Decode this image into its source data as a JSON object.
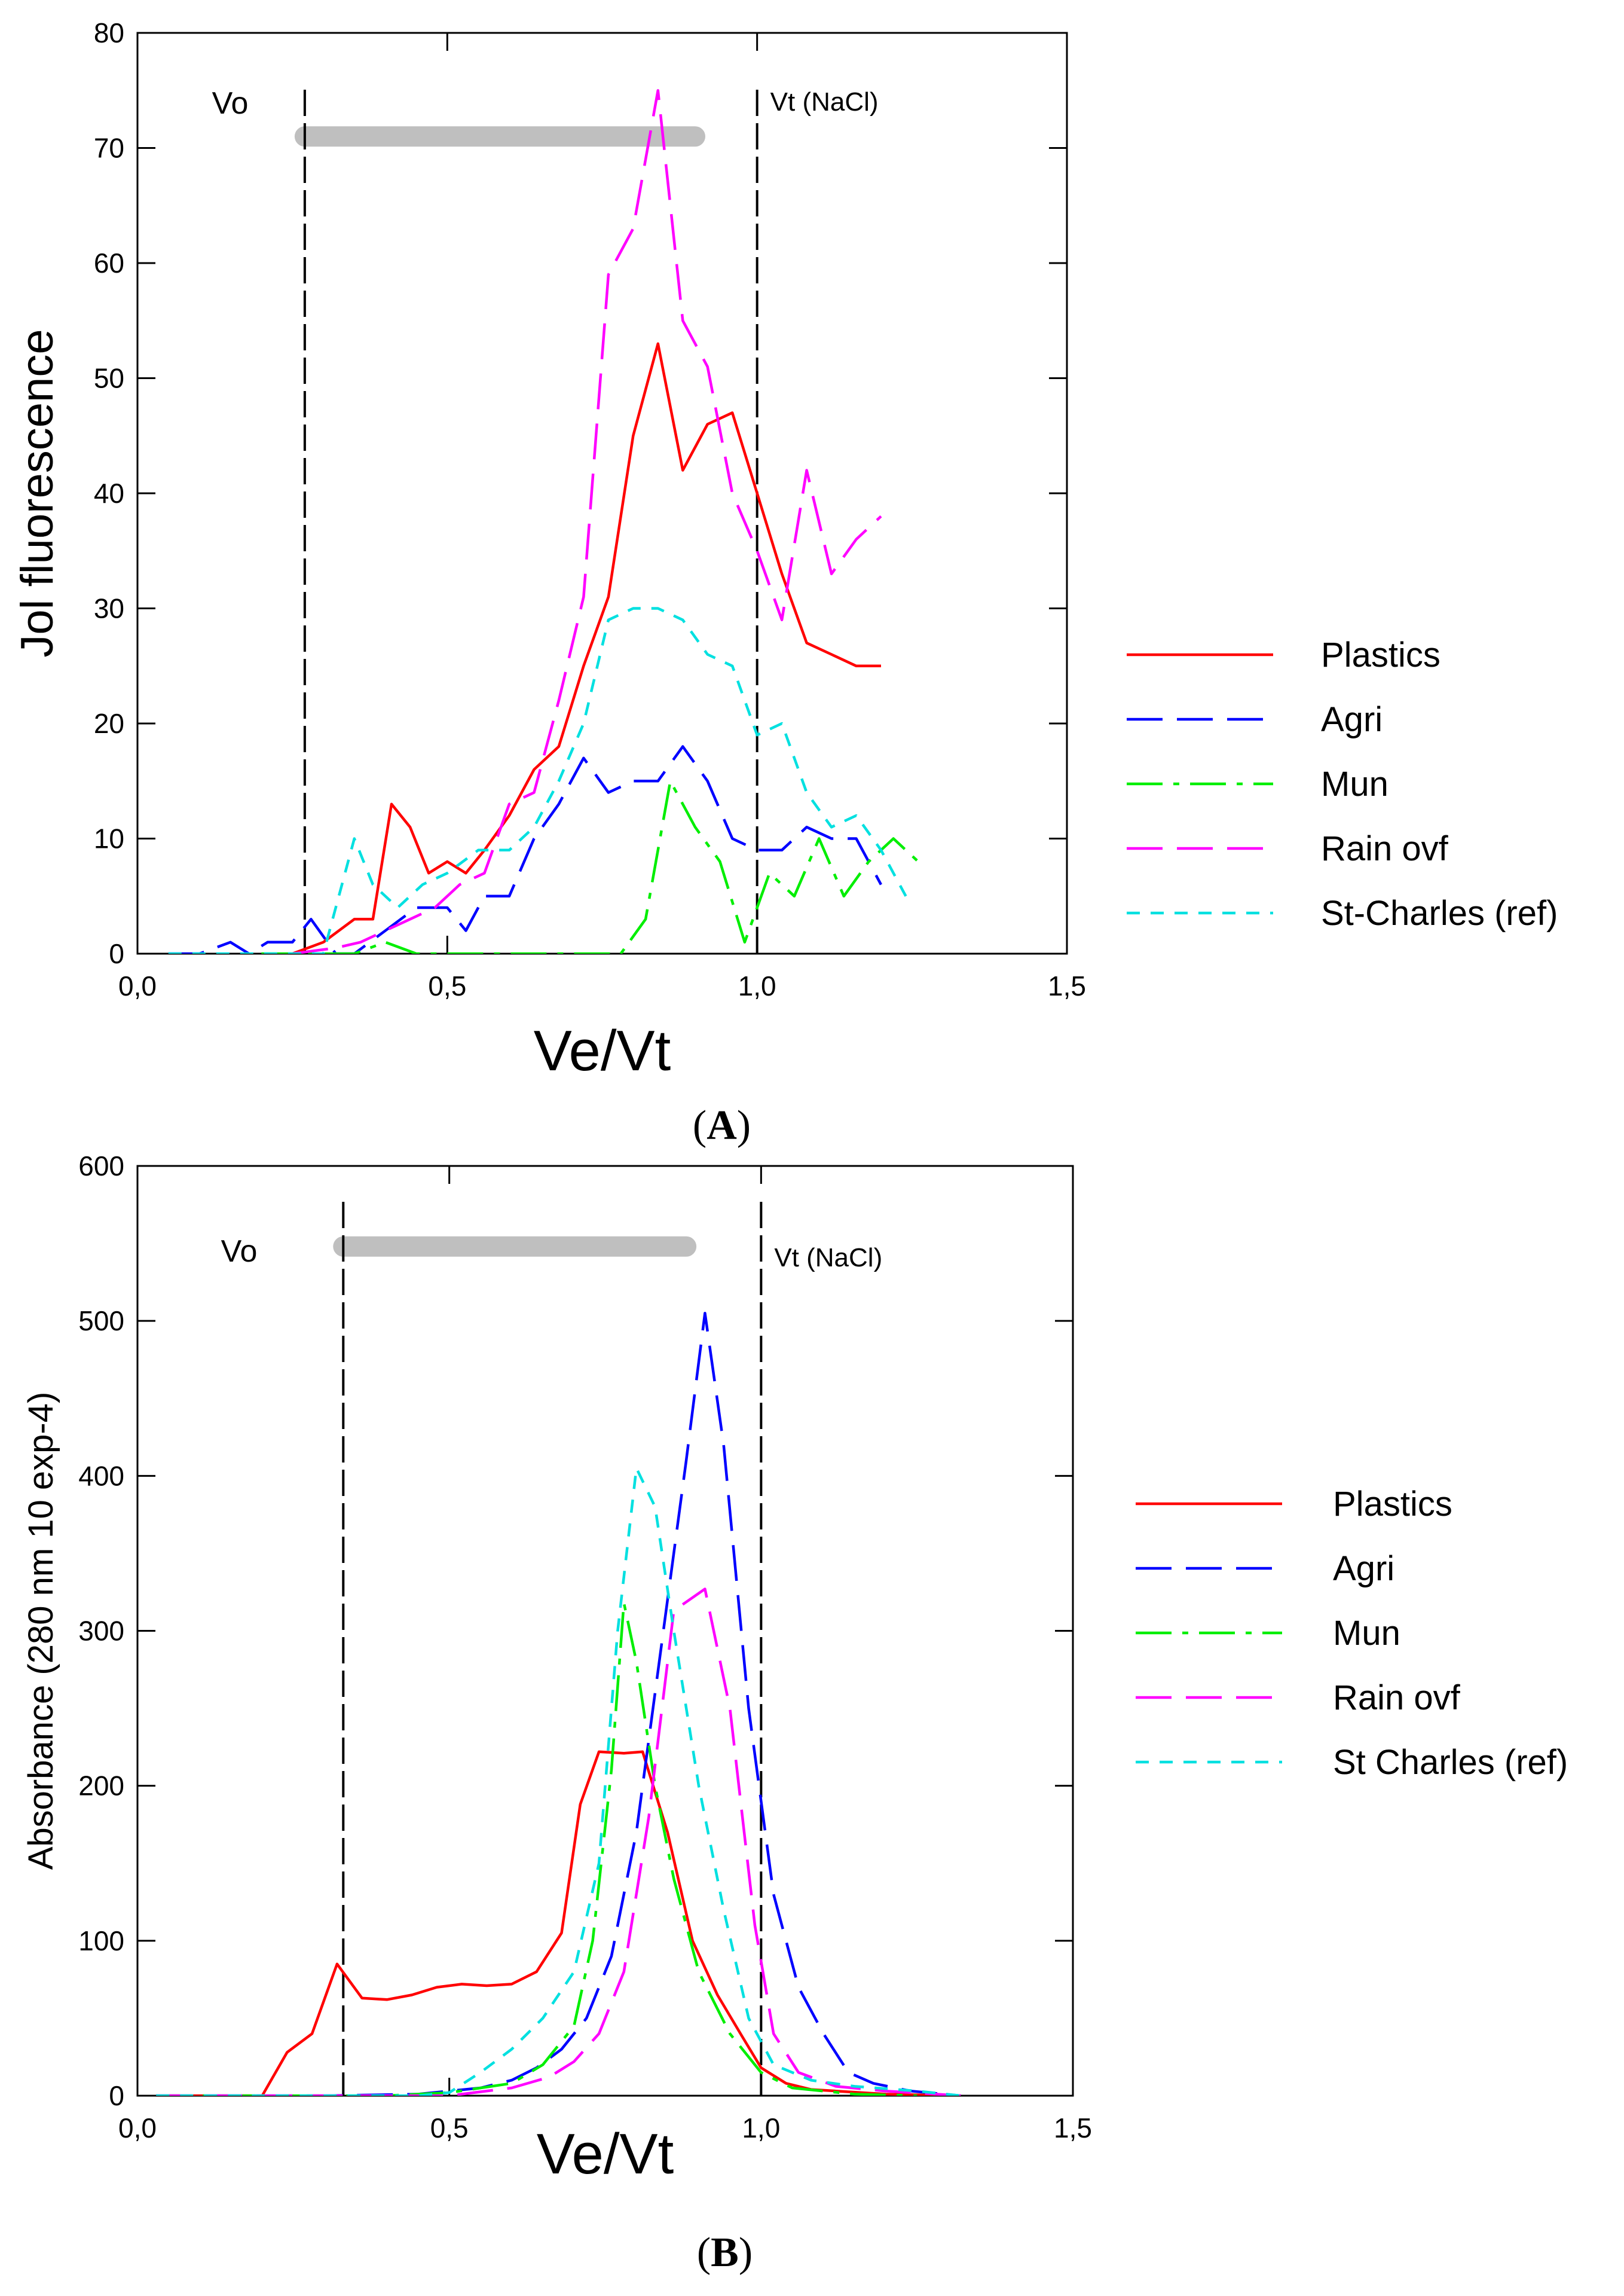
{
  "chart_data": [
    {
      "panel_label": "A",
      "type": "line",
      "xlabel": "Ve/Vt",
      "ylabel": "Jol fluorescence",
      "xlim": [
        0,
        1.5
      ],
      "ylim": [
        0,
        80
      ],
      "x_ticks": [
        0,
        0.5,
        1.0,
        1.5
      ],
      "x_tick_labels": [
        "0,0",
        "0,5",
        "1,0",
        "1,5"
      ],
      "y_ticks": [
        0,
        10,
        20,
        30,
        40,
        50,
        60,
        70,
        80
      ],
      "y_tick_labels": [
        "0",
        "10",
        "20",
        "30",
        "40",
        "50",
        "60",
        "70",
        "80"
      ],
      "grid": false,
      "legend_position": "right",
      "markers": [
        {
          "label": "Vo",
          "x": 0.27
        },
        {
          "label": "Vt (NaCl)",
          "x": 1.0
        }
      ],
      "range_bar": {
        "x_start": 0.27,
        "x_end": 0.9,
        "y": 71
      },
      "series": [
        {
          "name": "Plastics",
          "color": "#ff0000",
          "dash": "solid",
          "points": [
            [
              0.25,
              0
            ],
            [
              0.3,
              1
            ],
            [
              0.35,
              3
            ],
            [
              0.38,
              3
            ],
            [
              0.41,
              13
            ],
            [
              0.44,
              11
            ],
            [
              0.47,
              7
            ],
            [
              0.5,
              8
            ],
            [
              0.53,
              7
            ],
            [
              0.56,
              9
            ],
            [
              0.6,
              12
            ],
            [
              0.64,
              16
            ],
            [
              0.68,
              18
            ],
            [
              0.72,
              25
            ],
            [
              0.76,
              31
            ],
            [
              0.8,
              45
            ],
            [
              0.84,
              53
            ],
            [
              0.88,
              42
            ],
            [
              0.92,
              46
            ],
            [
              0.96,
              47
            ],
            [
              1.0,
              40
            ],
            [
              1.04,
              33
            ],
            [
              1.08,
              27
            ],
            [
              1.12,
              26
            ],
            [
              1.16,
              25
            ],
            [
              1.2,
              25
            ]
          ]
        },
        {
          "name": "Agri",
          "color": "#0000ff",
          "dash": "long",
          "points": [
            [
              0.05,
              0
            ],
            [
              0.1,
              0
            ],
            [
              0.15,
              1
            ],
            [
              0.18,
              0
            ],
            [
              0.21,
              1
            ],
            [
              0.25,
              1
            ],
            [
              0.28,
              3
            ],
            [
              0.32,
              0
            ],
            [
              0.35,
              0
            ],
            [
              0.4,
              2
            ],
            [
              0.45,
              4
            ],
            [
              0.5,
              4
            ],
            [
              0.53,
              2
            ],
            [
              0.56,
              5
            ],
            [
              0.6,
              5
            ],
            [
              0.64,
              10
            ],
            [
              0.68,
              13
            ],
            [
              0.72,
              17
            ],
            [
              0.76,
              14
            ],
            [
              0.8,
              15
            ],
            [
              0.84,
              15
            ],
            [
              0.88,
              18
            ],
            [
              0.92,
              15
            ],
            [
              0.96,
              10
            ],
            [
              1.0,
              9
            ],
            [
              1.04,
              9
            ],
            [
              1.08,
              11
            ],
            [
              1.12,
              10
            ],
            [
              1.16,
              10
            ],
            [
              1.2,
              6
            ]
          ]
        },
        {
          "name": "Mun",
          "color": "#00ee00",
          "dash": "dashdot",
          "points": [
            [
              0.2,
              0
            ],
            [
              0.3,
              0
            ],
            [
              0.35,
              0
            ],
            [
              0.4,
              1
            ],
            [
              0.45,
              0
            ],
            [
              0.5,
              0
            ],
            [
              0.6,
              0
            ],
            [
              0.7,
              0
            ],
            [
              0.78,
              0
            ],
            [
              0.82,
              3
            ],
            [
              0.86,
              15
            ],
            [
              0.9,
              11
            ],
            [
              0.94,
              8
            ],
            [
              0.98,
              1
            ],
            [
              1.02,
              7
            ],
            [
              1.06,
              5
            ],
            [
              1.1,
              10
            ],
            [
              1.14,
              5
            ],
            [
              1.18,
              8
            ],
            [
              1.22,
              10
            ],
            [
              1.26,
              8
            ]
          ]
        },
        {
          "name": "Rain ovf",
          "color": "#ff00ff",
          "dash": "long",
          "points": [
            [
              0.25,
              0
            ],
            [
              0.32,
              0.5
            ],
            [
              0.36,
              1
            ],
            [
              0.4,
              2
            ],
            [
              0.44,
              3
            ],
            [
              0.48,
              4
            ],
            [
              0.52,
              6
            ],
            [
              0.56,
              7
            ],
            [
              0.6,
              13
            ],
            [
              0.64,
              14
            ],
            [
              0.68,
              22
            ],
            [
              0.72,
              31
            ],
            [
              0.76,
              59
            ],
            [
              0.8,
              63
            ],
            [
              0.84,
              75
            ],
            [
              0.88,
              55
            ],
            [
              0.92,
              51
            ],
            [
              0.96,
              40
            ],
            [
              1.0,
              35
            ],
            [
              1.04,
              29
            ],
            [
              1.08,
              42
            ],
            [
              1.12,
              33
            ],
            [
              1.16,
              36
            ],
            [
              1.2,
              38
            ]
          ]
        },
        {
          "name": "St-Charles (ref)",
          "color": "#00e0e0",
          "dash": "short",
          "points": [
            [
              0.05,
              0
            ],
            [
              0.2,
              0
            ],
            [
              0.3,
              0
            ],
            [
              0.35,
              10
            ],
            [
              0.38,
              6
            ],
            [
              0.42,
              4
            ],
            [
              0.46,
              6
            ],
            [
              0.5,
              7
            ],
            [
              0.55,
              9
            ],
            [
              0.6,
              9
            ],
            [
              0.64,
              11
            ],
            [
              0.68,
              15
            ],
            [
              0.72,
              20
            ],
            [
              0.76,
              29
            ],
            [
              0.8,
              30
            ],
            [
              0.84,
              30
            ],
            [
              0.88,
              29
            ],
            [
              0.92,
              26
            ],
            [
              0.96,
              25
            ],
            [
              1.0,
              19
            ],
            [
              1.04,
              20
            ],
            [
              1.08,
              14
            ],
            [
              1.12,
              11
            ],
            [
              1.16,
              12
            ],
            [
              1.2,
              9
            ],
            [
              1.24,
              5
            ]
          ]
        }
      ]
    },
    {
      "panel_label": "B",
      "type": "line",
      "xlabel": "Ve/Vt",
      "ylabel": "Absorbance  (280 nm 10 exp-4)",
      "xlim": [
        0,
        1.5
      ],
      "ylim": [
        0,
        600
      ],
      "x_ticks": [
        0,
        0.5,
        1.0,
        1.5
      ],
      "x_tick_labels": [
        "0,0",
        "0,5",
        "1,0",
        "1,5"
      ],
      "y_ticks": [
        0,
        100,
        200,
        300,
        400,
        500,
        600
      ],
      "y_tick_labels": [
        "0",
        "100",
        "200",
        "300",
        "400",
        "500",
        "600"
      ],
      "grid": false,
      "legend_position": "right",
      "markers": [
        {
          "label": "Vo",
          "x": 0.33
        },
        {
          "label": "Vt (NaCl)",
          "x": 1.0
        }
      ],
      "range_bar": {
        "x_start": 0.33,
        "x_end": 0.88,
        "y": 548
      },
      "series": [
        {
          "name": "Plastics",
          "color": "#ff0000",
          "dash": "solid",
          "points": [
            [
              0.03,
              0
            ],
            [
              0.2,
              0
            ],
            [
              0.24,
              28
            ],
            [
              0.28,
              40
            ],
            [
              0.32,
              85
            ],
            [
              0.36,
              63
            ],
            [
              0.4,
              62
            ],
            [
              0.44,
              65
            ],
            [
              0.48,
              70
            ],
            [
              0.52,
              72
            ],
            [
              0.56,
              71
            ],
            [
              0.6,
              72
            ],
            [
              0.64,
              80
            ],
            [
              0.68,
              105
            ],
            [
              0.71,
              188
            ],
            [
              0.74,
              222
            ],
            [
              0.78,
              221
            ],
            [
              0.81,
              222
            ],
            [
              0.85,
              170
            ],
            [
              0.89,
              100
            ],
            [
              0.93,
              65
            ],
            [
              0.97,
              38
            ],
            [
              1.0,
              18
            ],
            [
              1.04,
              8
            ],
            [
              1.08,
              4
            ],
            [
              1.12,
              3
            ],
            [
              1.2,
              1
            ],
            [
              1.32,
              0
            ]
          ]
        },
        {
          "name": "Agri",
          "color": "#0000ff",
          "dash": "long",
          "points": [
            [
              0.03,
              0
            ],
            [
              0.3,
              0
            ],
            [
              0.45,
              1
            ],
            [
              0.5,
              3
            ],
            [
              0.55,
              5
            ],
            [
              0.6,
              10
            ],
            [
              0.64,
              18
            ],
            [
              0.68,
              30
            ],
            [
              0.72,
              50
            ],
            [
              0.76,
              90
            ],
            [
              0.8,
              170
            ],
            [
              0.84,
              290
            ],
            [
              0.88,
              410
            ],
            [
              0.91,
              505
            ],
            [
              0.94,
              420
            ],
            [
              0.98,
              250
            ],
            [
              1.02,
              130
            ],
            [
              1.06,
              70
            ],
            [
              1.1,
              40
            ],
            [
              1.14,
              15
            ],
            [
              1.18,
              8
            ],
            [
              1.24,
              3
            ],
            [
              1.32,
              0
            ]
          ]
        },
        {
          "name": "Mun",
          "color": "#00ee00",
          "dash": "dashdot",
          "points": [
            [
              0.03,
              0
            ],
            [
              0.4,
              0
            ],
            [
              0.5,
              2
            ],
            [
              0.6,
              8
            ],
            [
              0.65,
              20
            ],
            [
              0.7,
              45
            ],
            [
              0.73,
              100
            ],
            [
              0.76,
              210
            ],
            [
              0.78,
              318
            ],
            [
              0.8,
              280
            ],
            [
              0.83,
              200
            ],
            [
              0.86,
              140
            ],
            [
              0.9,
              80
            ],
            [
              0.95,
              40
            ],
            [
              1.0,
              15
            ],
            [
              1.05,
              5
            ],
            [
              1.15,
              1
            ],
            [
              1.25,
              0
            ]
          ]
        },
        {
          "name": "Rain ovf",
          "color": "#ff00ff",
          "dash": "long",
          "points": [
            [
              0.03,
              0
            ],
            [
              0.5,
              0
            ],
            [
              0.6,
              5
            ],
            [
              0.66,
              12
            ],
            [
              0.7,
              22
            ],
            [
              0.74,
              40
            ],
            [
              0.78,
              80
            ],
            [
              0.82,
              180
            ],
            [
              0.86,
              313
            ],
            [
              0.91,
              327
            ],
            [
              0.95,
              250
            ],
            [
              0.99,
              110
            ],
            [
              1.02,
              40
            ],
            [
              1.06,
              15
            ],
            [
              1.12,
              6
            ],
            [
              1.2,
              3
            ],
            [
              1.32,
              0
            ]
          ]
        },
        {
          "name": "St Charles (ref)",
          "color": "#00e0e0",
          "dash": "short",
          "points": [
            [
              0.03,
              0
            ],
            [
              0.45,
              0
            ],
            [
              0.5,
              2
            ],
            [
              0.55,
              15
            ],
            [
              0.6,
              30
            ],
            [
              0.65,
              50
            ],
            [
              0.7,
              80
            ],
            [
              0.74,
              150
            ],
            [
              0.77,
              300
            ],
            [
              0.8,
              405
            ],
            [
              0.83,
              380
            ],
            [
              0.86,
              300
            ],
            [
              0.9,
              200
            ],
            [
              0.94,
              120
            ],
            [
              0.98,
              50
            ],
            [
              1.02,
              20
            ],
            [
              1.08,
              10
            ],
            [
              1.15,
              6
            ],
            [
              1.25,
              3
            ],
            [
              1.32,
              0
            ]
          ]
        }
      ]
    }
  ]
}
